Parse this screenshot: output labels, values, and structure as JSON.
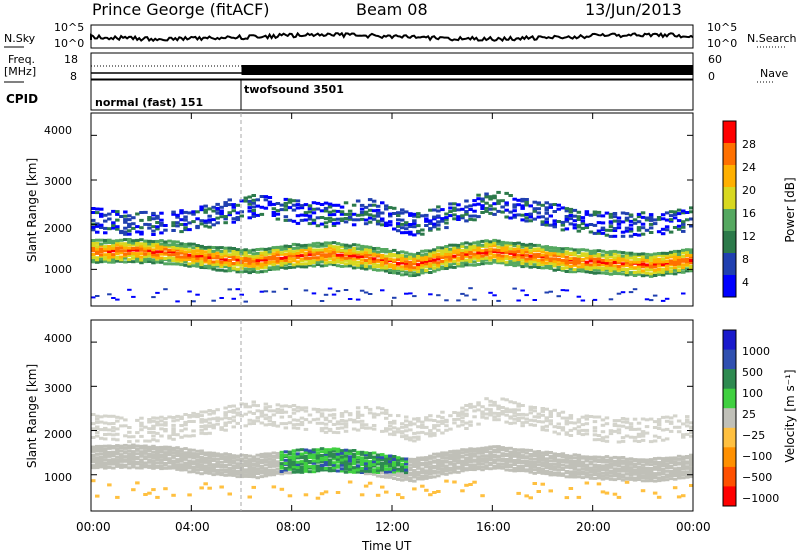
{
  "header": {
    "station": "Prince George (fitACF)",
    "beam": "Beam 08",
    "date": "13/Jun/2013"
  },
  "side_labels": {
    "nsky": "N.Sky",
    "freq_line1": "Freq.",
    "freq_line2": "[MHz]",
    "cpid": "CPID",
    "nsearch": "N.Search",
    "nave": "Nave",
    "sky_ticks": [
      "10^5",
      "10^0"
    ],
    "search_ticks": [
      "10^5",
      "10^0"
    ],
    "freq_ticks": [
      "18",
      "8"
    ],
    "nave_ticks": [
      "60",
      "0"
    ]
  },
  "cpid_segments": [
    {
      "label": "normal (fast) 151",
      "start_hour": 0,
      "end_hour": 6
    },
    {
      "label": "twofsound 3501",
      "start_hour": 6,
      "end_hour": 24
    }
  ],
  "power_panel": {
    "ylabel": "Slant Range [km]",
    "yticks": [
      "4000",
      "3000",
      "2000",
      "1000"
    ],
    "colorbar_label": "Power [dB]",
    "colorbar_ticks": [
      "28",
      "24",
      "20",
      "16",
      "12",
      "8",
      "4"
    ],
    "colors": [
      "#0000ff",
      "#2040b0",
      "#2c7a4a",
      "#55a860",
      "#d8d820",
      "#ffb000",
      "#ff7000",
      "#ff0000"
    ]
  },
  "velocity_panel": {
    "ylabel": "Slant Range [km]",
    "yticks": [
      "4000",
      "3000",
      "2000",
      "1000"
    ],
    "colorbar_label": "Velocity [m s⁻¹]",
    "colorbar_ticks": [
      "1000",
      "500",
      "100",
      "25",
      "−25",
      "−100",
      "−500",
      "−1000"
    ],
    "colors": [
      "#1a1acc",
      "#3050b0",
      "#2e8a50",
      "#40d040",
      "#c0c0b8",
      "#ffc040",
      "#ff9000",
      "#ff5000",
      "#ff0000"
    ]
  },
  "time_axis": {
    "label": "Time UT",
    "ticks": [
      "00:00",
      "04:00",
      "08:00",
      "12:00",
      "16:00",
      "20:00",
      "00:00"
    ]
  },
  "chart_data": {
    "type": "heatmap",
    "x": [
      0,
      24
    ],
    "y_range_km": [
      180,
      4500
    ],
    "power_bands": [
      {
        "center_km": [
          1400,
          1420,
          1380,
          1250,
          1180,
          1300,
          1350,
          1250,
          1100,
          1300,
          1400,
          1300,
          1200,
          1150,
          1100,
          1200
        ],
        "dB": 24
      },
      {
        "center_km": [
          2100,
          2000,
          2050,
          2200,
          2400,
          2300,
          2200,
          2300,
          2000,
          2200,
          2500,
          2300,
          2100,
          2000,
          2000,
          2100
        ],
        "dB": 8
      }
    ],
    "velocity_highlight": {
      "start_hour": 7.5,
      "end_hour": 12.5,
      "center_km": 1400,
      "m_per_s": 100
    }
  }
}
